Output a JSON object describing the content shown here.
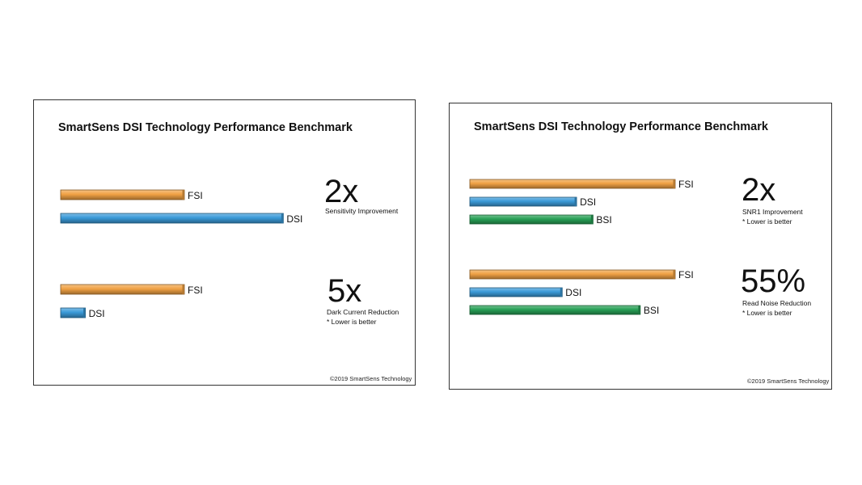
{
  "colors": {
    "FSI": "#f0a144",
    "DSI": "#3a9ad8",
    "BSI": "#28a056"
  },
  "chart_data": [
    {
      "type": "bar",
      "orientation": "horizontal",
      "title": "SmartSens DSI Technology Performance Benchmark",
      "copyright": "©2019 SmartSens Technology",
      "groups": [
        {
          "big_value": "2x",
          "caption": "Sensitivity Improvement",
          "note": "",
          "bars": [
            {
              "label": "FSI",
              "value": 1.0
            },
            {
              "label": "DSI",
              "value": 1.8
            }
          ]
        },
        {
          "big_value": "5x",
          "caption": "Dark Current Reduction",
          "note": "* Lower is better",
          "bars": [
            {
              "label": "FSI",
              "value": 1.0
            },
            {
              "label": "DSI",
              "value": 0.2
            }
          ]
        }
      ]
    },
    {
      "type": "bar",
      "orientation": "horizontal",
      "title": "SmartSens DSI Technology Performance Benchmark",
      "copyright": "©2019 SmartSens Technology",
      "groups": [
        {
          "big_value": "2x",
          "caption": "SNR1 Improvement",
          "note": "* Lower is better",
          "bars": [
            {
              "label": "FSI",
              "value": 1.0
            },
            {
              "label": "DSI",
              "value": 0.52
            },
            {
              "label": "BSI",
              "value": 0.6
            }
          ]
        },
        {
          "big_value": "55%",
          "caption": "Read Noise Reduction",
          "note": "* Lower is better",
          "bars": [
            {
              "label": "FSI",
              "value": 1.0
            },
            {
              "label": "DSI",
              "value": 0.45
            },
            {
              "label": "BSI",
              "value": 0.83
            }
          ]
        }
      ]
    }
  ]
}
